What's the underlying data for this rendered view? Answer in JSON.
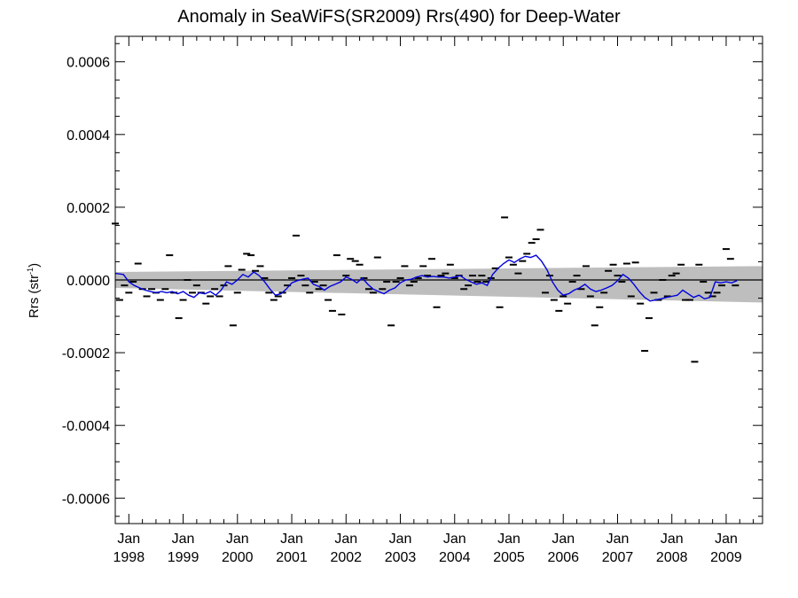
{
  "chart_data": {
    "type": "line",
    "title": "Anomaly in SeaWiFS(SR2009) Rrs(490) for Deep-Water",
    "ylabel_text": "Rrs (str",
    "ylabel_sup": "-1",
    "ylabel_close": ")",
    "xlabel": "",
    "ylim": [
      -0.00067,
      0.00067
    ],
    "xlim": [
      1997.75,
      2009.67
    ],
    "grid": false,
    "y_ticks": [
      -0.0006,
      -0.0004,
      -0.0002,
      0.0,
      0.0002,
      0.0004,
      0.0006
    ],
    "y_tick_labels": [
      "-0.0006",
      "-0.0004",
      "-0.0002",
      "0.0000",
      "0.0002",
      "0.0004",
      "0.0006"
    ],
    "x_ticks": [
      1998,
      1999,
      2000,
      2001,
      2002,
      2003,
      2004,
      2005,
      2006,
      2007,
      2008,
      2009
    ],
    "x_tick_month": "Jan",
    "x_tick_years": [
      "1998",
      "1999",
      "2000",
      "2001",
      "2002",
      "2003",
      "2004",
      "2005",
      "2006",
      "2007",
      "2008",
      "2009"
    ],
    "zero_line": 0.0,
    "confidence_band": {
      "color": "#bebebe",
      "x": [
        1997.75,
        2009.67
      ],
      "upper": [
        2.2e-05,
        3.8e-05
      ],
      "lower": [
        -2.2e-05,
        -6.2e-05
      ]
    },
    "series": [
      {
        "style": "markers",
        "color": "#000000",
        "points": [
          [
            1997.75,
            0.000155
          ],
          [
            1997.83,
            -5.5e-05
          ],
          [
            1997.92,
            -1.5e-05
          ],
          [
            1998.0,
            -3.5e-05
          ],
          [
            1998.08,
            -5e-06
          ],
          [
            1998.17,
            4.5e-05
          ],
          [
            1998.25,
            -2.5e-05
          ],
          [
            1998.33,
            -4.5e-05
          ],
          [
            1998.42,
            -2.5e-05
          ],
          [
            1998.5,
            -3.5e-05
          ],
          [
            1998.58,
            -5.5e-05
          ],
          [
            1998.67,
            -2.5e-05
          ],
          [
            1998.75,
            6.8e-05
          ],
          [
            1998.83,
            -3.5e-05
          ],
          [
            1998.92,
            -0.000105
          ],
          [
            1999.0,
            -5.5e-05
          ],
          [
            1999.08,
            0.0
          ],
          [
            1999.17,
            -3.5e-05
          ],
          [
            1999.25,
            -1.5e-05
          ],
          [
            1999.33,
            -3.5e-05
          ],
          [
            1999.42,
            -6.5e-05
          ],
          [
            1999.5,
            -4.5e-05
          ],
          [
            1999.58,
            -2.5e-05
          ],
          [
            1999.67,
            -4.5e-05
          ],
          [
            1999.75,
            -1.5e-05
          ],
          [
            1999.83,
            3.8e-05
          ],
          [
            1999.92,
            -0.000125
          ],
          [
            2000.0,
            -3.5e-05
          ],
          [
            2000.08,
            2.8e-05
          ],
          [
            2000.17,
            7.2e-05
          ],
          [
            2000.25,
            6.8e-05
          ],
          [
            2000.33,
            2.5e-05
          ],
          [
            2000.42,
            3.8e-05
          ],
          [
            2000.5,
            5e-06
          ],
          [
            2000.58,
            -3.5e-05
          ],
          [
            2000.67,
            -5.5e-05
          ],
          [
            2000.75,
            -4.5e-05
          ],
          [
            2000.83,
            -3.5e-05
          ],
          [
            2000.92,
            -1.5e-05
          ],
          [
            2001.0,
            5e-06
          ],
          [
            2001.08,
            0.000122
          ],
          [
            2001.17,
            1.2e-05
          ],
          [
            2001.25,
            -1.5e-05
          ],
          [
            2001.33,
            -3.5e-05
          ],
          [
            2001.42,
            -5e-06
          ],
          [
            2001.5,
            -2.5e-05
          ],
          [
            2001.58,
            -1.5e-05
          ],
          [
            2001.67,
            -5.5e-05
          ],
          [
            2001.75,
            -8.5e-05
          ],
          [
            2001.83,
            6.8e-05
          ],
          [
            2001.92,
            -9.5e-05
          ],
          [
            2002.0,
            1.2e-05
          ],
          [
            2002.08,
            5.8e-05
          ],
          [
            2002.17,
            5.2e-05
          ],
          [
            2002.25,
            4.2e-05
          ],
          [
            2002.33,
            5e-06
          ],
          [
            2002.42,
            -2.5e-05
          ],
          [
            2002.5,
            -3.5e-05
          ],
          [
            2002.58,
            6.2e-05
          ],
          [
            2002.67,
            -2.5e-05
          ],
          [
            2002.75,
            -5e-06
          ],
          [
            2002.83,
            -0.000125
          ],
          [
            2002.92,
            -5e-06
          ],
          [
            2003.0,
            5e-06
          ],
          [
            2003.08,
            3.8e-05
          ],
          [
            2003.17,
            -1.5e-05
          ],
          [
            2003.25,
            -5e-06
          ],
          [
            2003.33,
            5e-06
          ],
          [
            2003.42,
            3.8e-05
          ],
          [
            2003.5,
            1.2e-05
          ],
          [
            2003.58,
            5.8e-05
          ],
          [
            2003.67,
            -7.5e-05
          ],
          [
            2003.75,
            1.2e-05
          ],
          [
            2003.83,
            1.8e-05
          ],
          [
            2003.92,
            4.2e-05
          ],
          [
            2004.0,
            5e-06
          ],
          [
            2004.08,
            1.2e-05
          ],
          [
            2004.17,
            -2.5e-05
          ],
          [
            2004.25,
            -1.5e-05
          ],
          [
            2004.33,
            1.2e-05
          ],
          [
            2004.42,
            -5e-06
          ],
          [
            2004.5,
            1.2e-05
          ],
          [
            2004.58,
            -5e-06
          ],
          [
            2004.67,
            5e-06
          ],
          [
            2004.75,
            3.2e-05
          ],
          [
            2004.83,
            -7.5e-05
          ],
          [
            2004.92,
            0.000172
          ],
          [
            2005.0,
            6.2e-05
          ],
          [
            2005.08,
            4.2e-05
          ],
          [
            2005.17,
            1.8e-05
          ],
          [
            2005.25,
            5.2e-05
          ],
          [
            2005.33,
            7.2e-05
          ],
          [
            2005.42,
            0.000102
          ],
          [
            2005.5,
            0.000112
          ],
          [
            2005.58,
            0.000138
          ],
          [
            2005.67,
            -3.5e-05
          ],
          [
            2005.75,
            1.2e-05
          ],
          [
            2005.83,
            -5.5e-05
          ],
          [
            2005.92,
            -8.5e-05
          ],
          [
            2006.0,
            -4.5e-05
          ],
          [
            2006.08,
            -6.5e-05
          ],
          [
            2006.17,
            -5e-06
          ],
          [
            2006.25,
            1.2e-05
          ],
          [
            2006.33,
            -2.5e-05
          ],
          [
            2006.42,
            3.8e-05
          ],
          [
            2006.5,
            -4.5e-05
          ],
          [
            2006.58,
            -0.000125
          ],
          [
            2006.67,
            -7.5e-05
          ],
          [
            2006.75,
            -3.5e-05
          ],
          [
            2006.83,
            2.5e-05
          ],
          [
            2006.92,
            4.2e-05
          ],
          [
            2007.0,
            1.2e-05
          ],
          [
            2007.08,
            -5e-06
          ],
          [
            2007.17,
            4.5e-05
          ],
          [
            2007.25,
            -4.5e-05
          ],
          [
            2007.33,
            4.8e-05
          ],
          [
            2007.42,
            -6.5e-05
          ],
          [
            2007.5,
            -0.000195
          ],
          [
            2007.58,
            -0.000105
          ],
          [
            2007.67,
            -3.5e-05
          ],
          [
            2007.75,
            -5.5e-05
          ],
          [
            2007.83,
            0.0
          ],
          [
            2007.92,
            -4.5e-05
          ],
          [
            2008.0,
            1.2e-05
          ],
          [
            2008.08,
            1.8e-05
          ],
          [
            2008.17,
            4.2e-05
          ],
          [
            2008.25,
            -5.5e-05
          ],
          [
            2008.33,
            -5.5e-05
          ],
          [
            2008.42,
            -0.000225
          ],
          [
            2008.5,
            4.2e-05
          ],
          [
            2008.58,
            -5e-06
          ],
          [
            2008.67,
            -3.5e-05
          ],
          [
            2008.75,
            -4.5e-05
          ],
          [
            2008.83,
            -3.5e-05
          ],
          [
            2008.92,
            -1.5e-05
          ],
          [
            2009.0,
            8.5e-05
          ],
          [
            2009.08,
            5.8e-05
          ],
          [
            2009.17,
            -1.5e-05
          ]
        ]
      },
      {
        "style": "line",
        "color": "#0000dd",
        "points": [
          [
            1997.75,
            1.8e-05
          ],
          [
            1997.9,
            1.5e-05
          ],
          [
            1998.0,
            -5e-06
          ],
          [
            1998.1,
            -1.5e-05
          ],
          [
            1998.2,
            -2.2e-05
          ],
          [
            1998.3,
            -2.8e-05
          ],
          [
            1998.4,
            -3.2e-05
          ],
          [
            1998.5,
            -3.5e-05
          ],
          [
            1998.6,
            -3.2e-05
          ],
          [
            1998.7,
            -3.5e-05
          ],
          [
            1998.8,
            -3.2e-05
          ],
          [
            1998.9,
            -3.8e-05
          ],
          [
            1999.0,
            -3.2e-05
          ],
          [
            1999.1,
            -4.2e-05
          ],
          [
            1999.2,
            -4.8e-05
          ],
          [
            1999.3,
            -3.5e-05
          ],
          [
            1999.4,
            -3.8e-05
          ],
          [
            1999.5,
            -3.2e-05
          ],
          [
            1999.6,
            -4.2e-05
          ],
          [
            1999.7,
            -2.8e-05
          ],
          [
            1999.8,
            -5e-06
          ],
          [
            1999.9,
            -1.2e-05
          ],
          [
            2000.0,
            0.0
          ],
          [
            2000.1,
            1.5e-05
          ],
          [
            2000.2,
            8e-06
          ],
          [
            2000.3,
            2.2e-05
          ],
          [
            2000.4,
            1.2e-05
          ],
          [
            2000.5,
            -5e-06
          ],
          [
            2000.6,
            -2.5e-05
          ],
          [
            2000.7,
            -4.2e-05
          ],
          [
            2000.8,
            -3.8e-05
          ],
          [
            2000.9,
            -2.5e-05
          ],
          [
            2001.0,
            -8e-06
          ],
          [
            2001.1,
            -2e-06
          ],
          [
            2001.2,
            2e-06
          ],
          [
            2001.3,
            5e-06
          ],
          [
            2001.4,
            -1.2e-05
          ],
          [
            2001.5,
            -1.8e-05
          ],
          [
            2001.6,
            -2.8e-05
          ],
          [
            2001.7,
            -1.8e-05
          ],
          [
            2001.8,
            -1.2e-05
          ],
          [
            2001.9,
            -5e-06
          ],
          [
            2002.0,
            8e-06
          ],
          [
            2002.1,
            2e-06
          ],
          [
            2002.2,
            -8e-06
          ],
          [
            2002.3,
            5e-06
          ],
          [
            2002.4,
            -1.2e-05
          ],
          [
            2002.5,
            -2.5e-05
          ],
          [
            2002.6,
            -3.2e-05
          ],
          [
            2002.7,
            -3.8e-05
          ],
          [
            2002.8,
            -2.8e-05
          ],
          [
            2002.9,
            -2.2e-05
          ],
          [
            2003.0,
            -8e-06
          ],
          [
            2003.1,
            0.0
          ],
          [
            2003.2,
            2e-06
          ],
          [
            2003.3,
            8e-06
          ],
          [
            2003.4,
            1.2e-05
          ],
          [
            2003.5,
            8e-06
          ],
          [
            2003.6,
            1e-05
          ],
          [
            2003.7,
            8e-06
          ],
          [
            2003.8,
            8e-06
          ],
          [
            2003.9,
            5e-06
          ],
          [
            2004.0,
            8e-06
          ],
          [
            2004.1,
            1.2e-05
          ],
          [
            2004.2,
            2e-06
          ],
          [
            2004.3,
            -5e-06
          ],
          [
            2004.4,
            -1.2e-05
          ],
          [
            2004.5,
            -8e-06
          ],
          [
            2004.6,
            -1.5e-05
          ],
          [
            2004.7,
            1.5e-05
          ],
          [
            2004.8,
            3.2e-05
          ],
          [
            2004.9,
            4.5e-05
          ],
          [
            2005.0,
            5.5e-05
          ],
          [
            2005.1,
            4.8e-05
          ],
          [
            2005.2,
            5.8e-05
          ],
          [
            2005.3,
            6.5e-05
          ],
          [
            2005.4,
            6.2e-05
          ],
          [
            2005.5,
            6.8e-05
          ],
          [
            2005.6,
            5.2e-05
          ],
          [
            2005.7,
            2.8e-05
          ],
          [
            2005.8,
            -5e-06
          ],
          [
            2005.9,
            -2.8e-05
          ],
          [
            2006.0,
            -4.2e-05
          ],
          [
            2006.1,
            -3.8e-05
          ],
          [
            2006.2,
            -2.8e-05
          ],
          [
            2006.3,
            -2.2e-05
          ],
          [
            2006.4,
            -1.2e-05
          ],
          [
            2006.5,
            -2.5e-05
          ],
          [
            2006.6,
            -3.2e-05
          ],
          [
            2006.7,
            -2.8e-05
          ],
          [
            2006.8,
            -2.2e-05
          ],
          [
            2006.9,
            -1.5e-05
          ],
          [
            2007.0,
            -2e-06
          ],
          [
            2007.1,
            1.5e-05
          ],
          [
            2007.2,
            5e-06
          ],
          [
            2007.3,
            -1.2e-05
          ],
          [
            2007.4,
            -3.2e-05
          ],
          [
            2007.5,
            -4.8e-05
          ],
          [
            2007.6,
            -5.8e-05
          ],
          [
            2007.7,
            -5.5e-05
          ],
          [
            2007.8,
            -5.2e-05
          ],
          [
            2007.9,
            -4.8e-05
          ],
          [
            2008.0,
            -4.5e-05
          ],
          [
            2008.1,
            -4.2e-05
          ],
          [
            2008.2,
            -2.8e-05
          ],
          [
            2008.3,
            -3.8e-05
          ],
          [
            2008.4,
            -4.8e-05
          ],
          [
            2008.5,
            -4.2e-05
          ],
          [
            2008.6,
            -5.2e-05
          ],
          [
            2008.7,
            -4.8e-05
          ],
          [
            2008.8,
            -5e-06
          ],
          [
            2008.9,
            -8e-06
          ],
          [
            2009.0,
            -5e-06
          ],
          [
            2009.1,
            -8e-06
          ],
          [
            2009.2,
            -2e-06
          ]
        ]
      }
    ]
  }
}
